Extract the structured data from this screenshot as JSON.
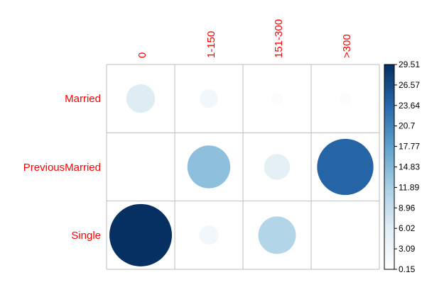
{
  "chart_data": {
    "type": "heatmap",
    "title": "",
    "columns": [
      "0",
      "1-150",
      "151-300",
      ">300"
    ],
    "rows": [
      "Married",
      "PreviousMarried",
      "Single"
    ],
    "values": [
      [
        6.3,
        2.7,
        1.2,
        1.2
      ],
      [
        0.15,
        14.0,
        5.2,
        24.0
      ],
      [
        29.51,
        2.9,
        10.8,
        0.15
      ]
    ],
    "glyph": "circle",
    "colorbar": {
      "min": 0.15,
      "max": 29.51,
      "ticks": [
        "29.51",
        "26.57",
        "23.64",
        "20.7",
        "17.77",
        "14.83",
        "11.89",
        "8.96",
        "6.02",
        "3.09",
        "0.15"
      ]
    },
    "colors": {
      "label_text": "#ff0000",
      "grid": "#bebebe",
      "low": "#ffffff",
      "high": "#053061"
    },
    "grid": true,
    "legend": "colorbar-right"
  }
}
